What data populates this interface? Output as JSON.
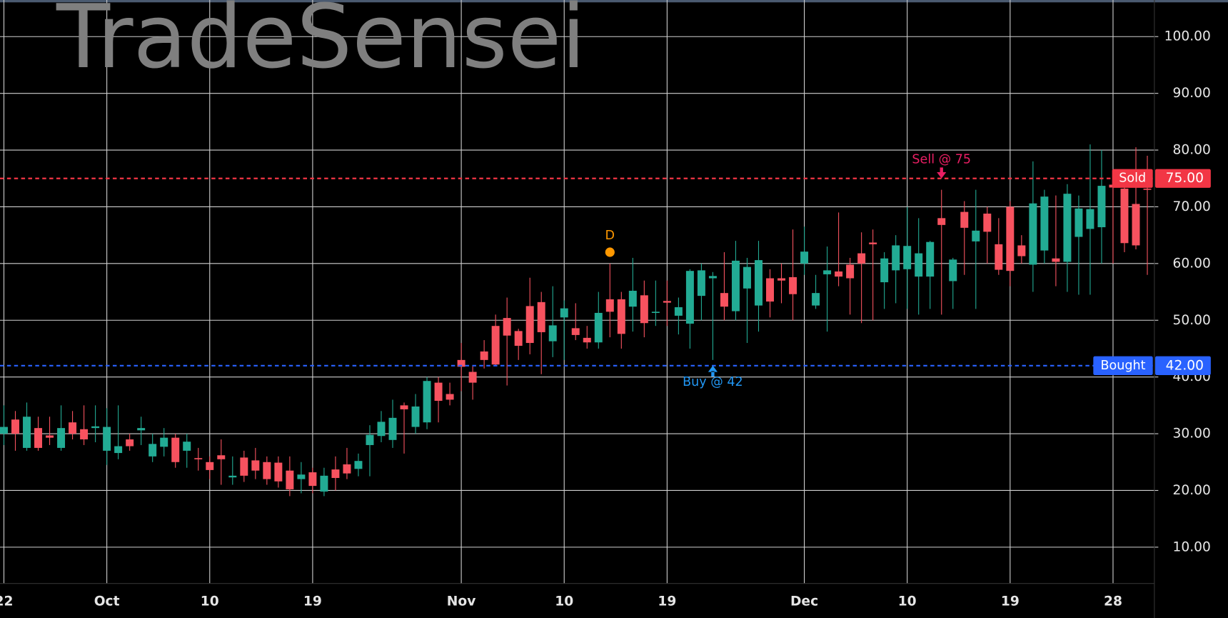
{
  "chart_data": {
    "type": "candlestick",
    "watermark": "TradeSensei",
    "categories": [
      "22",
      null,
      null,
      null,
      null,
      null,
      null,
      null,
      null,
      "Oct",
      null,
      null,
      null,
      null,
      null,
      null,
      null,
      null,
      "10",
      null,
      null,
      null,
      null,
      null,
      null,
      null,
      null,
      "19",
      null,
      null,
      null,
      null,
      null,
      null,
      null,
      null,
      null,
      null,
      null,
      null,
      "Nov",
      null,
      null,
      null,
      null,
      null,
      null,
      null,
      null,
      "10",
      null,
      null,
      null,
      null,
      null,
      null,
      null,
      null,
      "19",
      null,
      null,
      null,
      null,
      null,
      null,
      null,
      null,
      null,
      null,
      null,
      "Dec",
      null,
      null,
      null,
      null,
      null,
      null,
      null,
      null,
      "10",
      null,
      null,
      null,
      null,
      null,
      null,
      null,
      null,
      "19",
      null,
      null,
      null,
      null,
      null,
      null,
      null,
      null,
      "28",
      null,
      null,
      null
    ],
    "open": [
      30,
      32.5,
      27.5,
      31,
      29.7,
      27.5,
      32,
      30.8,
      31,
      27,
      26.6,
      29,
      30.6,
      26,
      27.7,
      29.3,
      27,
      25.7,
      25,
      26.2,
      22.3,
      25.8,
      25.3,
      25,
      24.9,
      23.5,
      22,
      23.2,
      19.8,
      23.7,
      24.6,
      23.8,
      28,
      29.6,
      28.9,
      35,
      31.2,
      32,
      39,
      37,
      43,
      40.9,
      44.5,
      49,
      50.4,
      48.1,
      52.5,
      53.2,
      46.3,
      50.5,
      48.6,
      46.9,
      46.1,
      53.7,
      53.7,
      52.4,
      54.4,
      51.3,
      53.4,
      50.8,
      49.4,
      54.3,
      57.4,
      54.8,
      51.6,
      55.6,
      52.6,
      57.4,
      57.4,
      57.6,
      60,
      52.6,
      58.1,
      58.6,
      59.8,
      61.8,
      63.7,
      56.7,
      58.8,
      59,
      57.7,
      57.7,
      68,
      56.9,
      69.1,
      63.9,
      68.8,
      63.4,
      70,
      63.2,
      59.8,
      62.3,
      60.9,
      60.3,
      64.7,
      66.1,
      66.4,
      73.9,
      73.2,
      70.5,
      73.2
    ],
    "high": [
      35,
      34,
      35.5,
      33,
      33,
      35,
      34,
      35,
      35,
      34.5,
      35,
      30,
      33,
      30,
      31,
      30,
      30,
      27.5,
      26,
      29,
      26,
      27,
      27.5,
      26,
      26,
      26,
      25,
      24,
      24,
      26,
      27.5,
      26.5,
      31.5,
      34,
      36,
      35.5,
      37,
      40,
      40,
      39,
      46,
      42,
      46.5,
      51,
      54,
      48.5,
      57.5,
      55,
      56,
      53.5,
      53,
      49,
      55,
      60,
      55,
      61,
      57,
      57,
      57,
      54,
      59,
      60,
      58.5,
      62,
      64,
      61,
      64,
      59,
      60,
      66,
      66.5,
      58,
      63,
      69,
      61,
      65.5,
      66,
      62,
      65,
      70,
      68,
      64,
      73,
      61,
      71,
      73,
      70,
      68,
      71,
      65,
      78,
      73,
      72,
      74,
      72,
      81,
      80,
      75,
      75,
      80.5,
      79
    ],
    "low": [
      28,
      27,
      27,
      27,
      28,
      27,
      29,
      28,
      28.5,
      24.5,
      25.5,
      27,
      28,
      25,
      26,
      24,
      24,
      23.5,
      22,
      21,
      21,
      21.5,
      22,
      21,
      20.5,
      19,
      19.5,
      19.5,
      19,
      20,
      22,
      22.5,
      22.5,
      28.5,
      27.5,
      26.5,
      30,
      30.8,
      32,
      35,
      37.5,
      36,
      41.5,
      42,
      38.5,
      43,
      44,
      40.5,
      43.5,
      43,
      46.5,
      45,
      45,
      47,
      45,
      48,
      47,
      49,
      49,
      47.5,
      45,
      50,
      43,
      50,
      50,
      46,
      48,
      50.5,
      53,
      50,
      58,
      52,
      48,
      56,
      51,
      49.5,
      50,
      52,
      53,
      52,
      51,
      52,
      51,
      52,
      58,
      52,
      60,
      58,
      56,
      60,
      55,
      60,
      56,
      55,
      54.5,
      54.5,
      60,
      60,
      62,
      62.5,
      58
    ],
    "close": [
      31.2,
      30,
      33,
      27.5,
      29.3,
      31,
      30,
      29,
      31.3,
      31.2,
      27.8,
      27.8,
      31,
      28.2,
      29.3,
      25,
      28.6,
      25.5,
      23.6,
      25.5,
      22.6,
      22.6,
      23.5,
      22,
      21.6,
      20.2,
      22.8,
      20.8,
      22.6,
      22.2,
      23,
      25.2,
      29.8,
      32.1,
      32.8,
      34.3,
      34.8,
      39.3,
      35.8,
      36,
      41.8,
      39,
      43,
      42.2,
      47.3,
      45.5,
      46,
      47.9,
      49.1,
      52.1,
      47.4,
      46.1,
      51.3,
      51.5,
      47.6,
      55.2,
      49.5,
      51.5,
      53.1,
      52.3,
      58.7,
      58.8,
      57.8,
      52.4,
      60.5,
      59.4,
      60.6,
      53.3,
      57,
      54.6,
      62.1,
      54.8,
      58.8,
      57.7,
      57.4,
      60,
      63.4,
      60.9,
      63.2,
      63.1,
      61.8,
      63.8,
      66.8,
      60.7,
      66.3,
      65.8,
      65.6,
      58.9,
      58.7,
      61.3,
      70.6,
      71.8,
      60.3,
      72.3,
      69.7,
      69.6,
      73.7,
      73.4,
      63.6,
      63.2,
      73
    ],
    "up_color": "#22ab94",
    "down_color": "#f7525f",
    "ylim": [
      3.6,
      105.9
    ],
    "yticks": [
      {
        "value": 10,
        "label": "10.00"
      },
      {
        "value": 20,
        "label": "20.00"
      },
      {
        "value": 30,
        "label": "30.00"
      },
      {
        "value": 40,
        "label": "40.00"
      },
      {
        "value": 50,
        "label": "50.00"
      },
      {
        "value": 60,
        "label": "60.00"
      },
      {
        "value": 70,
        "label": "70.00"
      },
      {
        "value": 80,
        "label": "80.00"
      },
      {
        "value": 90,
        "label": "90.00"
      },
      {
        "value": 100,
        "label": "100.00"
      }
    ],
    "grid": true,
    "hlines": [
      {
        "name": "Sold",
        "value": 75,
        "label": "75.00",
        "color": "#f23645"
      },
      {
        "name": "Bought",
        "value": 42,
        "label": "42.00",
        "color": "#2962ff"
      }
    ],
    "signals": [
      {
        "text": "D",
        "index": 53,
        "value": 62,
        "color": "#ff9800",
        "shape": "dot"
      },
      {
        "text": "Sell @ 75",
        "index": 82,
        "value": 75,
        "color": "#e91e63",
        "shape": "arrow-down"
      },
      {
        "text": "Buy @ 42",
        "index": 62,
        "value": 42,
        "color": "#2196f3",
        "shape": "arrow-up"
      }
    ]
  }
}
